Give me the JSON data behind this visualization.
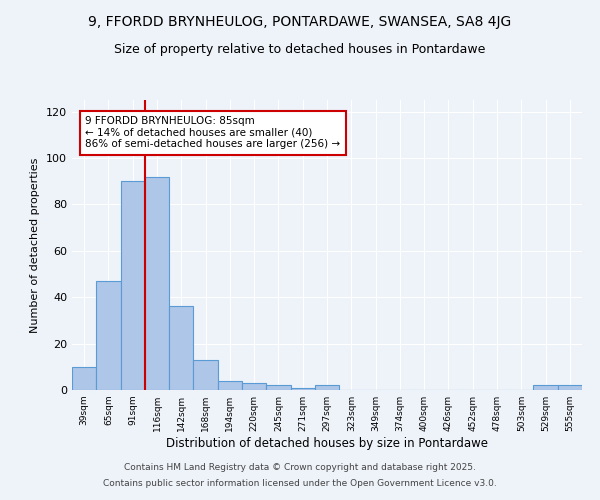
{
  "title1": "9, FFORDD BRYNHEULOG, PONTARDAWE, SWANSEA, SA8 4JG",
  "title2": "Size of property relative to detached houses in Pontardawe",
  "xlabel": "Distribution of detached houses by size in Pontardawe",
  "ylabel": "Number of detached properties",
  "categories": [
    "39sqm",
    "65sqm",
    "91sqm",
    "116sqm",
    "142sqm",
    "168sqm",
    "194sqm",
    "220sqm",
    "245sqm",
    "271sqm",
    "297sqm",
    "323sqm",
    "349sqm",
    "374sqm",
    "400sqm",
    "426sqm",
    "452sqm",
    "478sqm",
    "503sqm",
    "529sqm",
    "555sqm"
  ],
  "values": [
    10,
    47,
    90,
    92,
    36,
    13,
    4,
    3,
    2,
    1,
    2,
    0,
    0,
    0,
    0,
    0,
    0,
    0,
    0,
    2,
    2
  ],
  "bar_color": "#aec6e8",
  "bar_edge_color": "#5a9bd5",
  "vline_color": "#cc0000",
  "annotation_text": "9 FFORDD BRYNHEULOG: 85sqm\n← 14% of detached houses are smaller (40)\n86% of semi-detached houses are larger (256) →",
  "annotation_box_color": "#ffffff",
  "annotation_box_edge_color": "#cc0000",
  "ylim": [
    0,
    125
  ],
  "yticks": [
    0,
    20,
    40,
    60,
    80,
    100,
    120
  ],
  "footer1": "Contains HM Land Registry data © Crown copyright and database right 2025.",
  "footer2": "Contains public sector information licensed under the Open Government Licence v3.0.",
  "bg_color": "#eef2f9",
  "plot_bg_color": "#eef2f9",
  "title1_fontsize": 10,
  "title2_fontsize": 9,
  "annotation_fontsize": 7.5,
  "footer_fontsize": 6.5,
  "ylabel_fontsize": 8,
  "xlabel_fontsize": 8.5
}
